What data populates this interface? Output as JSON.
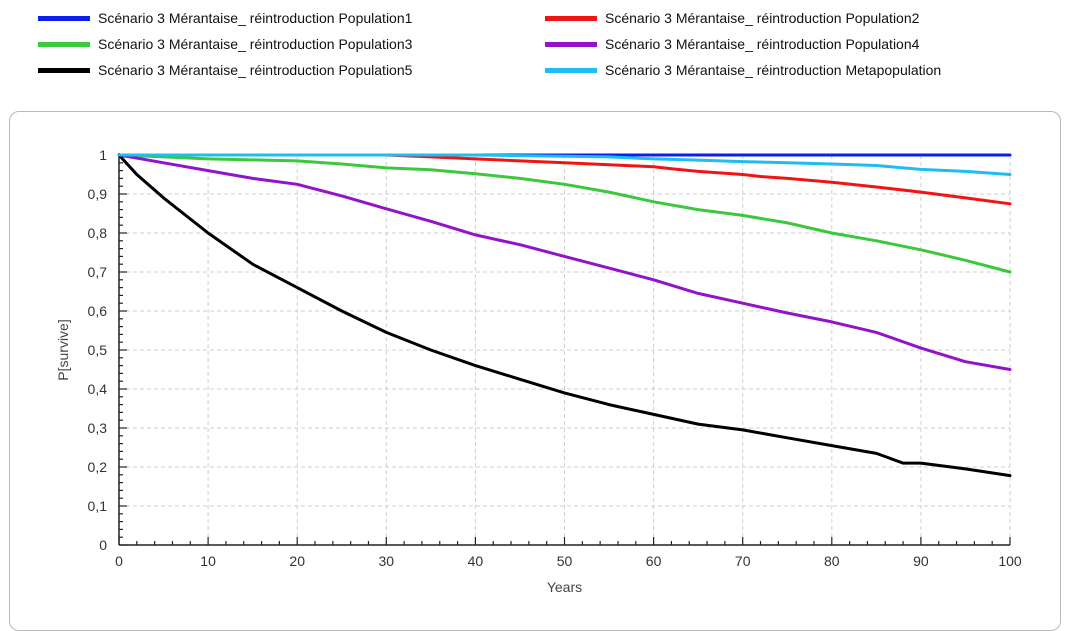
{
  "legend": [
    {
      "label": "Scénario 3 Mérantaise_ réintroduction Population1",
      "color": "#0a1ef0"
    },
    {
      "label": "Scénario 3 Mérantaise_ réintroduction Population2",
      "color": "#f01414"
    },
    {
      "label": "Scénario 3 Mérantaise_ réintroduction Population3",
      "color": "#3cc83c"
    },
    {
      "label": "Scénario 3 Mérantaise_ réintroduction Population4",
      "color": "#9314c8"
    },
    {
      "label": "Scénario 3 Mérantaise_ réintroduction Population5",
      "color": "#000000"
    },
    {
      "label": "Scénario 3 Mérantaise_ réintroduction Metapopulation",
      "color": "#1ebef0"
    }
  ],
  "chart_data": {
    "type": "line",
    "title": "",
    "xlabel": "Years",
    "ylabel": "P[survive]",
    "xlim": [
      0,
      100
    ],
    "ylim": [
      0,
      1
    ],
    "x_ticks": [
      "0",
      "10",
      "20",
      "30",
      "40",
      "50",
      "60",
      "70",
      "80",
      "90",
      "100"
    ],
    "y_ticks": [
      "0",
      "0,1",
      "0,2",
      "0,3",
      "0,4",
      "0,5",
      "0,6",
      "0,7",
      "0,8",
      "0,9",
      "1"
    ],
    "grid": true,
    "legend_position": "top",
    "series": [
      {
        "name": "Scénario 3 Mérantaise_ réintroduction Population1",
        "color": "#0a1ef0",
        "points": [
          [
            0,
            1
          ],
          [
            15,
            1
          ],
          [
            100,
            1
          ]
        ]
      },
      {
        "name": "Scénario 3 Mérantaise_ réintroduction Population2",
        "color": "#f01414",
        "points": [
          [
            0,
            1
          ],
          [
            15,
            1
          ],
          [
            30,
            1
          ],
          [
            35,
            0.995
          ],
          [
            40,
            0.99
          ],
          [
            45,
            0.985
          ],
          [
            50,
            0.98
          ],
          [
            55,
            0.975
          ],
          [
            60,
            0.97
          ],
          [
            62,
            0.965
          ],
          [
            65,
            0.958
          ],
          [
            70,
            0.95
          ],
          [
            72,
            0.945
          ],
          [
            75,
            0.94
          ],
          [
            80,
            0.93
          ],
          [
            85,
            0.918
          ],
          [
            90,
            0.905
          ],
          [
            95,
            0.89
          ],
          [
            100,
            0.875
          ]
        ]
      },
      {
        "name": "Scénario 3 Mérantaise_ réintroduction Population3",
        "color": "#3cc83c",
        "points": [
          [
            0,
            1
          ],
          [
            5,
            0.995
          ],
          [
            10,
            0.99
          ],
          [
            20,
            0.985
          ],
          [
            25,
            0.977
          ],
          [
            30,
            0.967
          ],
          [
            35,
            0.962
          ],
          [
            40,
            0.952
          ],
          [
            45,
            0.94
          ],
          [
            50,
            0.925
          ],
          [
            55,
            0.905
          ],
          [
            60,
            0.88
          ],
          [
            65,
            0.86
          ],
          [
            70,
            0.845
          ],
          [
            75,
            0.826
          ],
          [
            80,
            0.8
          ],
          [
            85,
            0.78
          ],
          [
            90,
            0.757
          ],
          [
            95,
            0.73
          ],
          [
            100,
            0.7
          ]
        ]
      },
      {
        "name": "Scénario 3 Mérantaise_ réintroduction Population4",
        "color": "#9314c8",
        "points": [
          [
            0,
            1
          ],
          [
            5,
            0.98
          ],
          [
            10,
            0.96
          ],
          [
            15,
            0.94
          ],
          [
            20,
            0.925
          ],
          [
            25,
            0.895
          ],
          [
            30,
            0.862
          ],
          [
            35,
            0.83
          ],
          [
            40,
            0.795
          ],
          [
            45,
            0.77
          ],
          [
            50,
            0.74
          ],
          [
            55,
            0.71
          ],
          [
            60,
            0.68
          ],
          [
            65,
            0.645
          ],
          [
            70,
            0.62
          ],
          [
            75,
            0.595
          ],
          [
            80,
            0.572
          ],
          [
            85,
            0.545
          ],
          [
            90,
            0.505
          ],
          [
            95,
            0.47
          ],
          [
            100,
            0.45
          ]
        ]
      },
      {
        "name": "Scénario 3 Mérantaise_ réintroduction Population5",
        "color": "#000000",
        "points": [
          [
            0,
            1
          ],
          [
            2,
            0.95
          ],
          [
            5,
            0.89
          ],
          [
            10,
            0.8
          ],
          [
            15,
            0.72
          ],
          [
            20,
            0.66
          ],
          [
            25,
            0.6
          ],
          [
            30,
            0.545
          ],
          [
            35,
            0.5
          ],
          [
            40,
            0.46
          ],
          [
            45,
            0.425
          ],
          [
            50,
            0.39
          ],
          [
            55,
            0.36
          ],
          [
            60,
            0.335
          ],
          [
            65,
            0.31
          ],
          [
            70,
            0.295
          ],
          [
            75,
            0.275
          ],
          [
            80,
            0.255
          ],
          [
            85,
            0.235
          ],
          [
            88,
            0.21
          ],
          [
            90,
            0.21
          ],
          [
            95,
            0.195
          ],
          [
            100,
            0.178
          ]
        ]
      },
      {
        "name": "Scénario 3 Mérantaise_ réintroduction Metapopulation",
        "color": "#1ebef0",
        "points": [
          [
            0,
            1
          ],
          [
            40,
            1
          ],
          [
            55,
            0.995
          ],
          [
            60,
            0.99
          ],
          [
            65,
            0.987
          ],
          [
            70,
            0.983
          ],
          [
            75,
            0.98
          ],
          [
            80,
            0.977
          ],
          [
            85,
            0.973
          ],
          [
            90,
            0.963
          ],
          [
            95,
            0.958
          ],
          [
            100,
            0.95
          ]
        ]
      }
    ]
  }
}
